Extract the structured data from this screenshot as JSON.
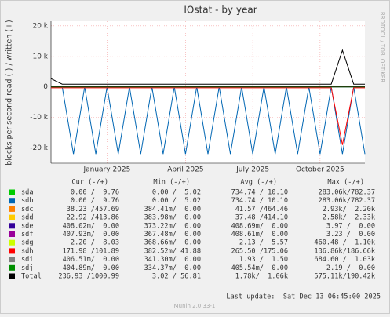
{
  "chart_data": {
    "type": "line",
    "title": "IOstat - by year",
    "ylabel": "blocks per second read (-) / written (+)",
    "side_text": "RRDTOOL / TOBI OETIKER",
    "footer": "Last update:  Sat Dec 13 06:45:00 2025",
    "version": "Munin 2.0.33-1",
    "columns": [
      "Cur (-/+)",
      "Min (-/+)",
      "Avg (-/+)",
      "Max (-/+)"
    ],
    "categories": [
      null,
      null,
      null,
      null,
      null,
      "January 2025",
      null,
      null,
      null,
      null,
      null,
      null,
      "April 2025",
      null,
      null,
      null,
      null,
      null,
      "July 2025",
      null,
      null,
      null,
      null,
      null,
      "October 2025",
      null,
      null,
      null,
      null
    ],
    "ylim": [
      -25000,
      21500
    ],
    "yticks": [
      {
        "value": -20000,
        "label": "-20 k"
      },
      {
        "value": -10000,
        "label": "-10 k"
      },
      0,
      {
        "value": 10000,
        "label": "10 k"
      },
      {
        "value": 20000,
        "label": "20 k"
      }
    ],
    "grid": true,
    "series": [
      {
        "name": "sda",
        "color": "#00cc00",
        "cur": "0.00 /  9.76",
        "min": "0.00 /  5.02",
        "avg": "734.74 / 10.10",
        "max": "283.06k/782.37",
        "values": [
          0,
          0,
          0,
          0,
          0,
          0,
          0,
          0,
          0,
          0,
          0,
          0,
          0,
          0,
          0,
          0,
          0,
          0,
          0,
          0,
          0,
          0,
          0,
          0,
          0,
          0,
          0,
          0,
          0
        ]
      },
      {
        "name": "sdb",
        "color": "#0066b3",
        "cur": "0.00 /  9.76",
        "min": "0.00 /  5.02",
        "avg": "734.74 / 10.10",
        "max": "283.06k/782.37",
        "values": [
          0,
          0,
          -22000,
          0,
          -22000,
          0,
          -22000,
          0,
          -22000,
          0,
          -22000,
          0,
          -22000,
          0,
          -22000,
          0,
          -22000,
          0,
          -22000,
          0,
          -22000,
          0,
          -22000,
          0,
          -22000,
          0,
          -22000,
          0,
          -22000
        ]
      },
      {
        "name": "sdc",
        "color": "#ff8000",
        "cur": "38.23 /457.69",
        "min": "384.41m/  0.00",
        "avg": "41.57 /464.46",
        "max": "2.93k/  2.20k",
        "values": [
          300,
          300,
          300,
          300,
          300,
          300,
          300,
          300,
          300,
          300,
          300,
          300,
          300,
          300,
          300,
          300,
          300,
          300,
          300,
          300,
          300,
          300,
          300,
          300,
          300,
          300,
          300,
          300,
          300
        ]
      },
      {
        "name": "sdd",
        "color": "#ffcc00",
        "cur": "22.92 /413.86",
        "min": "383.98m/  0.00",
        "avg": "37.48 /414.10",
        "max": "2.58k/  2.33k",
        "values": [
          100,
          100,
          100,
          100,
          100,
          100,
          100,
          100,
          100,
          100,
          100,
          100,
          100,
          100,
          100,
          100,
          100,
          100,
          100,
          100,
          100,
          100,
          100,
          100,
          100,
          100,
          100,
          100,
          100
        ]
      },
      {
        "name": "sde",
        "color": "#330099",
        "cur": "408.02m/  0.00",
        "min": "373.22m/  0.00",
        "avg": "408.69m/  0.00",
        "max": "3.97 /  0.00",
        "values": [
          0,
          0,
          0,
          0,
          0,
          0,
          0,
          0,
          0,
          0,
          0,
          0,
          0,
          0,
          0,
          0,
          0,
          0,
          0,
          0,
          0,
          0,
          0,
          0,
          0,
          0,
          0,
          0,
          0
        ]
      },
      {
        "name": "sdf",
        "color": "#990099",
        "cur": "407.93m/  0.00",
        "min": "367.48m/  0.00",
        "avg": "408.61m/  0.00",
        "max": "3.23 /  0.00",
        "values": [
          0,
          0,
          0,
          0,
          0,
          0,
          0,
          0,
          0,
          0,
          0,
          0,
          0,
          0,
          0,
          0,
          0,
          0,
          0,
          0,
          0,
          0,
          0,
          0,
          0,
          0,
          0,
          0,
          0
        ]
      },
      {
        "name": "sdg",
        "color": "#ccff00",
        "cur": "2.20 /  8.03",
        "min": "368.66m/  0.00",
        "avg": "2.13 /  5.57",
        "max": "460.48 /  1.10k",
        "values": [
          50,
          50,
          50,
          50,
          50,
          50,
          50,
          50,
          50,
          50,
          50,
          50,
          50,
          50,
          50,
          50,
          50,
          50,
          50,
          50,
          50,
          50,
          50,
          50,
          50,
          50,
          50,
          50,
          50
        ]
      },
      {
        "name": "sdh",
        "color": "#ff0000",
        "cur": "171.98 /101.89",
        "min": "382.52m/ 41.88",
        "avg": "265.50 /175.06",
        "max": "136.86k/186.66k",
        "values": [
          -300,
          -300,
          -300,
          -300,
          -300,
          -300,
          -300,
          -300,
          -300,
          -300,
          -300,
          -300,
          -300,
          -300,
          -300,
          -300,
          -300,
          -300,
          -300,
          -300,
          -300,
          -300,
          -300,
          -300,
          -300,
          -300,
          -19000,
          -300,
          -300
        ]
      },
      {
        "name": "sdi",
        "color": "#808080",
        "cur": "406.51m/  0.00",
        "min": "341.30m/  0.00",
        "avg": "1.93 /  1.50",
        "max": "684.60 /  1.03k",
        "values": [
          0,
          0,
          0,
          0,
          0,
          0,
          0,
          0,
          0,
          0,
          0,
          0,
          0,
          0,
          0,
          0,
          0,
          0,
          0,
          0,
          0,
          0,
          0,
          0,
          0,
          0,
          0,
          0,
          0
        ]
      },
      {
        "name": "sdj",
        "color": "#008f00",
        "cur": "404.89m/  0.00",
        "min": "334.37m/  0.00",
        "avg": "405.54m/  0.00",
        "max": "2.19 /  0.00",
        "values": [
          0,
          0,
          0,
          0,
          0,
          0,
          0,
          0,
          0,
          0,
          0,
          0,
          0,
          0,
          0,
          0,
          0,
          0,
          0,
          0,
          0,
          0,
          0,
          0,
          0,
          0,
          0,
          0,
          0
        ]
      },
      {
        "name": "Total",
        "color": "#000000",
        "cur": "236.93 /1000.99",
        "min": "3.02 / 56.81",
        "avg": "1.78k/  1.06k",
        "max": "575.11k/190.42k",
        "values": [
          2700,
          900,
          900,
          900,
          900,
          900,
          900,
          900,
          900,
          900,
          900,
          900,
          900,
          900,
          900,
          900,
          900,
          900,
          900,
          900,
          900,
          900,
          900,
          900,
          900,
          900,
          12000,
          900,
          900
        ]
      }
    ]
  }
}
